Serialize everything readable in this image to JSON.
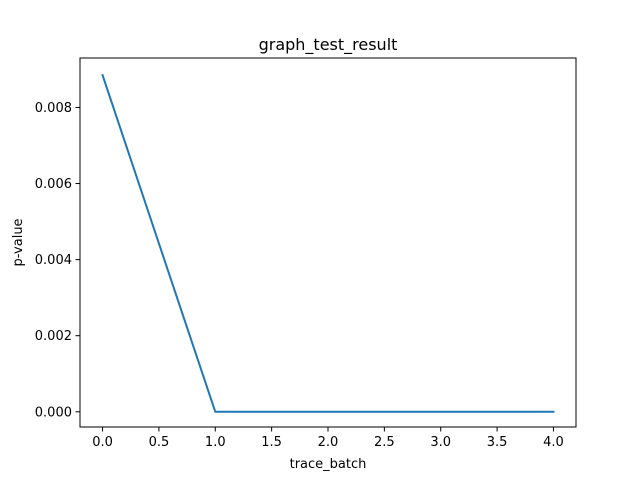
{
  "chart_data": {
    "type": "line",
    "title": "graph_test_result",
    "xlabel": "trace_batch",
    "ylabel": "p-value",
    "xlim": [
      -0.2,
      4.2
    ],
    "ylim": [
      -0.0004,
      0.0093
    ],
    "xticks": [
      0.0,
      0.5,
      1.0,
      1.5,
      2.0,
      2.5,
      3.0,
      3.5,
      4.0
    ],
    "xtick_labels": [
      "0.0",
      "0.5",
      "1.0",
      "1.5",
      "2.0",
      "2.5",
      "3.0",
      "3.5",
      "4.0"
    ],
    "yticks": [
      0.0,
      0.002,
      0.004,
      0.006,
      0.008
    ],
    "ytick_labels": [
      "0.000",
      "0.002",
      "0.004",
      "0.006",
      "0.008"
    ],
    "grid": false,
    "series": [
      {
        "color": "#1f77b4",
        "x": [
          0,
          1,
          2,
          3,
          4
        ],
        "y": [
          0.00885,
          0.0,
          0.0,
          0.0,
          0.0
        ]
      }
    ]
  }
}
